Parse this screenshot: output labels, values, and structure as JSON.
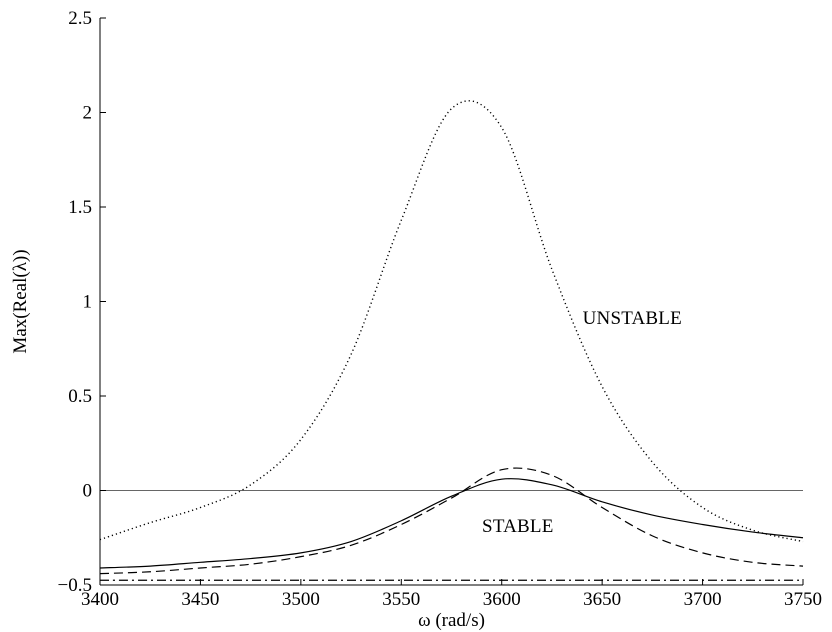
{
  "chart_data": {
    "type": "line",
    "title": "",
    "xlabel": "ω (rad/s)",
    "ylabel": "Max(Real(λ))",
    "xlim": [
      3400,
      3750
    ],
    "ylim": [
      -0.5,
      2.5
    ],
    "x_ticks": [
      3400,
      3450,
      3500,
      3550,
      3600,
      3650,
      3700,
      3750
    ],
    "x_tick_labels": [
      "3400",
      "3450",
      "3500",
      "3550",
      "3600",
      "3650",
      "3700",
      "3750"
    ],
    "y_ticks": [
      -0.5,
      0,
      0.5,
      1,
      1.5,
      2,
      2.5
    ],
    "y_tick_labels": [
      "−0.5",
      "0",
      "0.5",
      "1",
      "1.5",
      "2",
      "2.5"
    ],
    "grid": false,
    "legend": "none",
    "annotations": [
      {
        "text": "UNSTABLE",
        "x": 3665,
        "y": 0.88
      },
      {
        "text": "STABLE",
        "x": 3608,
        "y": -0.22
      }
    ],
    "reference_line": {
      "y": 0,
      "style": "solid",
      "color": "#666666"
    },
    "x": [
      3400,
      3425,
      3450,
      3475,
      3500,
      3525,
      3550,
      3575,
      3600,
      3625,
      3650,
      3675,
      3700,
      3725,
      3750
    ],
    "series": [
      {
        "style": "dotted",
        "color": "#000000",
        "values": [
          -0.26,
          -0.17,
          -0.09,
          0.03,
          0.27,
          0.72,
          1.43,
          2.02,
          1.92,
          1.17,
          0.55,
          0.15,
          -0.09,
          -0.21,
          -0.27
        ]
      },
      {
        "style": "solid",
        "color": "#000000",
        "values": [
          -0.41,
          -0.4,
          -0.38,
          -0.36,
          -0.33,
          -0.27,
          -0.16,
          -0.03,
          0.06,
          0.03,
          -0.06,
          -0.13,
          -0.18,
          -0.22,
          -0.25
        ]
      },
      {
        "style": "dashed",
        "color": "#000000",
        "values": [
          -0.44,
          -0.43,
          -0.41,
          -0.39,
          -0.35,
          -0.29,
          -0.18,
          -0.04,
          0.11,
          0.08,
          -0.09,
          -0.24,
          -0.33,
          -0.38,
          -0.4
        ]
      },
      {
        "style": "dashdot",
        "color": "#000000",
        "values": [
          -0.475,
          -0.475,
          -0.475,
          -0.475,
          -0.475,
          -0.475,
          -0.475,
          -0.475,
          -0.475,
          -0.475,
          -0.475,
          -0.475,
          -0.475,
          -0.475,
          -0.475
        ]
      }
    ]
  }
}
